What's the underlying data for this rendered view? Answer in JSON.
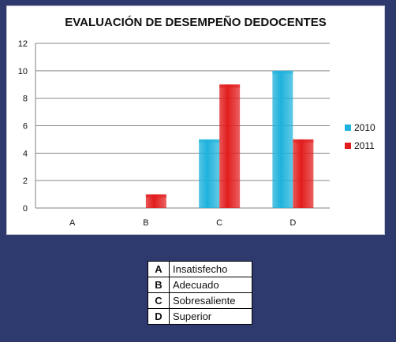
{
  "chart_data": {
    "type": "bar",
    "title": "EVALUACIÓN DE DESEMPEÑO DEDOCENTES",
    "categories": [
      "A",
      "B",
      "C",
      "D"
    ],
    "series": [
      {
        "name": "2010",
        "values": [
          0,
          0,
          5,
          10
        ],
        "color": "#1fb2dc"
      },
      {
        "name": "2011",
        "values": [
          0,
          1,
          9,
          5
        ],
        "color": "#e21d1d"
      }
    ],
    "yticks": [
      0,
      2,
      4,
      6,
      8,
      10,
      12
    ],
    "ylim": [
      0,
      12
    ],
    "grid": true,
    "legend_position": "right"
  },
  "key_table": [
    {
      "letter": "A",
      "description": "Insatisfecho"
    },
    {
      "letter": "B",
      "description": "Adecuado"
    },
    {
      "letter": "C",
      "description": "Sobresaliente"
    },
    {
      "letter": "D",
      "description": "Superior"
    }
  ]
}
